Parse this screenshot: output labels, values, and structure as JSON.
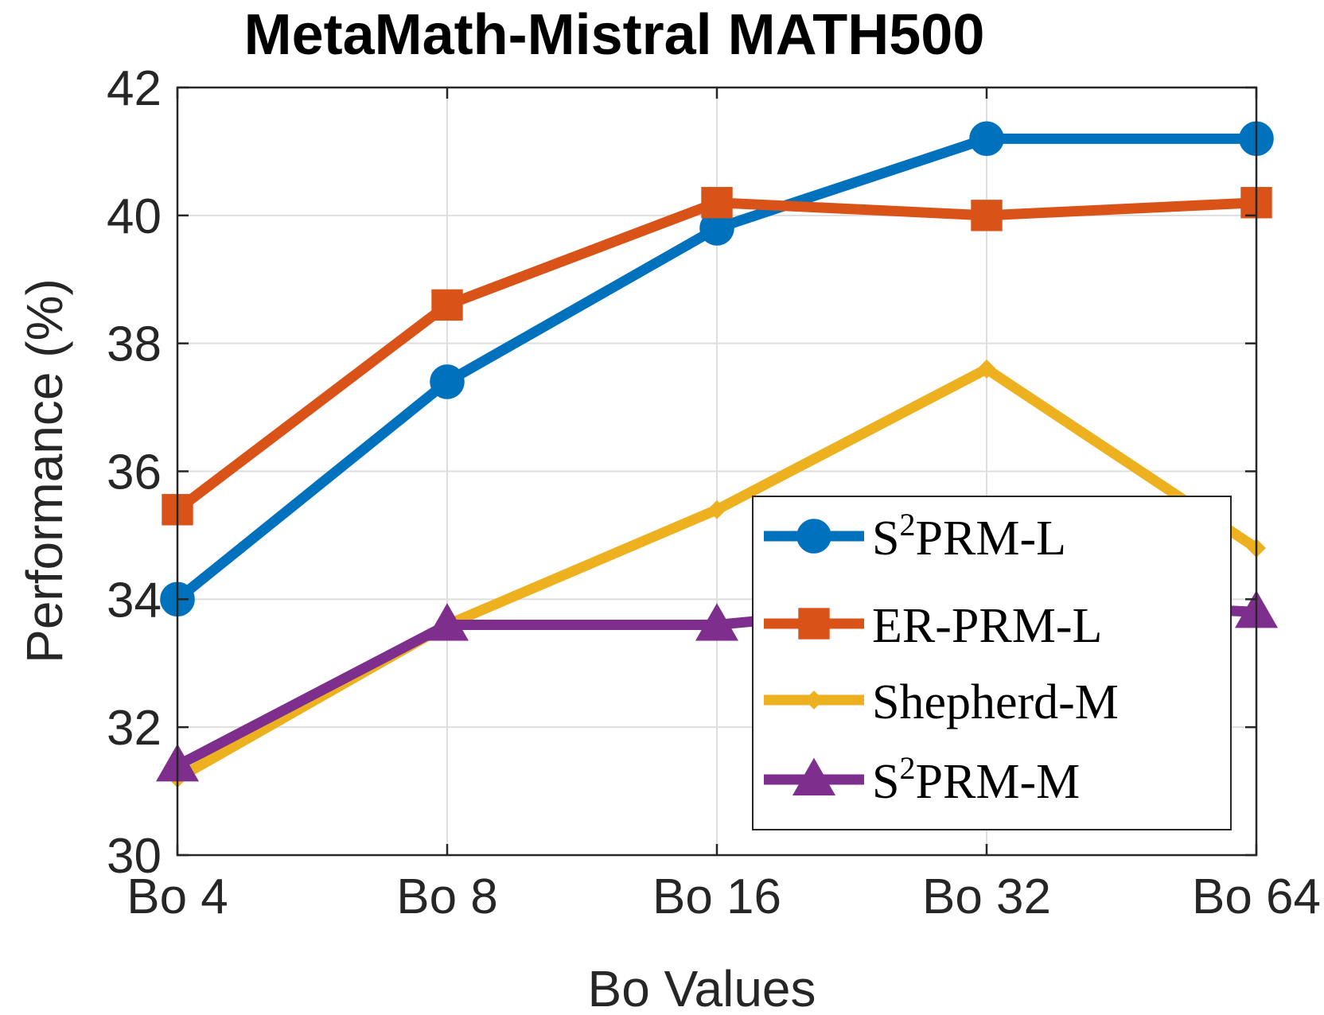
{
  "chart_data": {
    "type": "line",
    "title": "MetaMath-Mistral MATH500",
    "xlabel": "Bo Values",
    "ylabel": "Performance (%)",
    "categories": [
      "Bo 4",
      "Bo 8",
      "Bo 16",
      "Bo 32",
      "Bo 64"
    ],
    "ylim": [
      30,
      42
    ],
    "yticks": [
      30,
      32,
      34,
      36,
      38,
      40,
      42
    ],
    "grid": true,
    "legend_position": "bottom-right",
    "series": [
      {
        "name_parts": [
          "S",
          "2",
          "PRM-L"
        ],
        "color": "#0072BD",
        "marker": "circle",
        "values": [
          34.0,
          37.4,
          39.8,
          41.2,
          41.2
        ]
      },
      {
        "name": "ER-PRM-L",
        "color": "#D95319",
        "marker": "square",
        "values": [
          35.4,
          38.6,
          40.2,
          40.0,
          40.2
        ]
      },
      {
        "name": "Shepherd-M",
        "color": "#EDB120",
        "marker": "diamond",
        "values": [
          31.2,
          33.6,
          35.4,
          37.6,
          34.8
        ]
      },
      {
        "name_parts": [
          "S",
          "2",
          "PRM-M"
        ],
        "color": "#7E2F8E",
        "marker": "triangle",
        "values": [
          31.4,
          33.6,
          33.6,
          34.0,
          33.8
        ]
      }
    ]
  }
}
